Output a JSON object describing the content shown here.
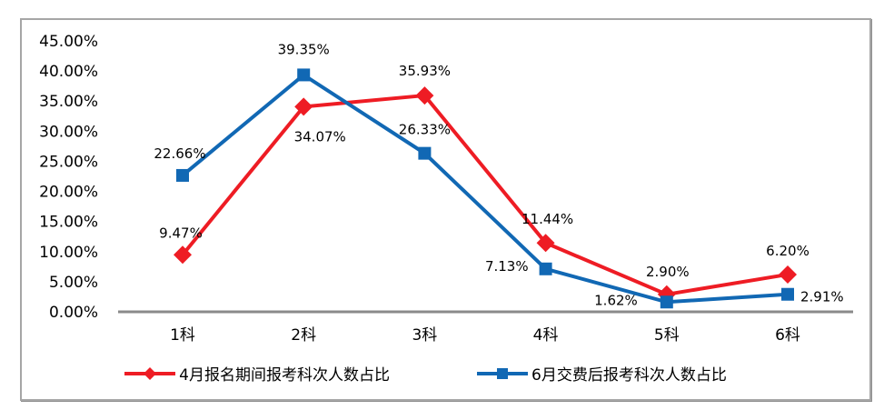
{
  "chart_data": {
    "type": "line",
    "categories": [
      "1科",
      "2科",
      "3科",
      "4科",
      "5科",
      "6科"
    ],
    "series": [
      {
        "name": "4月报名期间报考科次人数占比",
        "color": "#ee1c24",
        "marker": "diamond",
        "values": [
          9.47,
          34.07,
          35.93,
          11.44,
          2.9,
          6.2
        ],
        "point_labels": [
          "9.47%",
          "34.07%",
          "35.93%",
          "11.44%",
          "2.90%",
          "6.20%"
        ]
      },
      {
        "name": "6月交费后报考科次人数占比",
        "color": "#1168b4",
        "marker": "square",
        "values": [
          22.66,
          39.35,
          26.33,
          7.13,
          1.62,
          2.91
        ],
        "point_labels": [
          "22.66%",
          "39.35%",
          "26.33%",
          "7.13%",
          "1.62%",
          "2.91%"
        ]
      }
    ],
    "ylim": [
      0,
      45
    ],
    "ytick_step": 5,
    "ytick_labels": [
      "0.00%",
      "5.00%",
      "10.00%",
      "15.00%",
      "20.00%",
      "25.00%",
      "30.00%",
      "35.00%",
      "40.00%",
      "45.00%"
    ],
    "xlabel": "",
    "ylabel": "",
    "title": "",
    "grid": false,
    "legend_position": "bottom",
    "axis_color": "#8a8a8a"
  }
}
